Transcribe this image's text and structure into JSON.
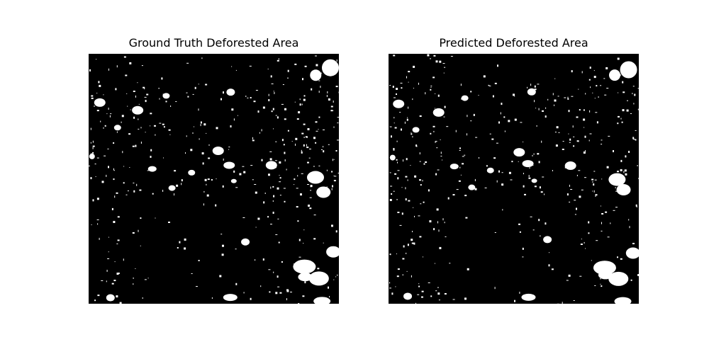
{
  "panels": [
    {
      "title": "Ground Truth Deforested Area",
      "image": "binary mask (white = deforested, black = other)"
    },
    {
      "title": "Predicted Deforested Area",
      "image": "binary mask (white = deforested, black = other)"
    }
  ],
  "colors": {
    "foreground": "#ffffff",
    "background": "#000000",
    "page": "#ffffff"
  }
}
